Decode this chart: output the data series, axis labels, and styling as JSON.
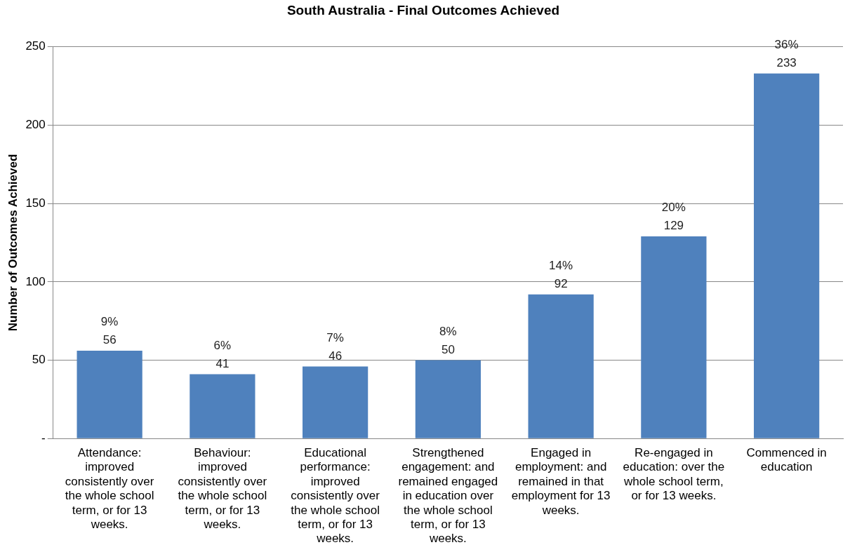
{
  "chart_data": {
    "type": "bar",
    "title": "South Australia - Final Outcomes Achieved",
    "ylabel": "Number of Outcomes Achieved",
    "categories": [
      "Attendance: improved consistently over the whole school term, or for 13 weeks.",
      "Behaviour: improved consistently over the whole school term, or for 13 weeks.",
      "Educational performance: improved consistently over the whole school term, or for 13 weeks.",
      "Strengthened engagement: and remained engaged in education over the whole school term, or for 13 weeks.",
      "Engaged in employment: and remained in that employment for 13 weeks.",
      "Re-engaged in education: over the whole school term, or for 13 weeks.",
      "Commenced in education"
    ],
    "values": [
      56,
      41,
      46,
      50,
      92,
      129,
      233
    ],
    "value_labels": [
      "9%\n56",
      "6%\n41",
      "7%\n46",
      "8%\n50",
      "14%\n92",
      "20%\n129",
      "36%\n233"
    ],
    "color": "#4f81bd",
    "ylim": [
      0,
      250
    ],
    "yticks": [
      {
        "value": 0,
        "label": "-"
      },
      50,
      100,
      150,
      200,
      250
    ],
    "grid": "y",
    "legend": false
  }
}
